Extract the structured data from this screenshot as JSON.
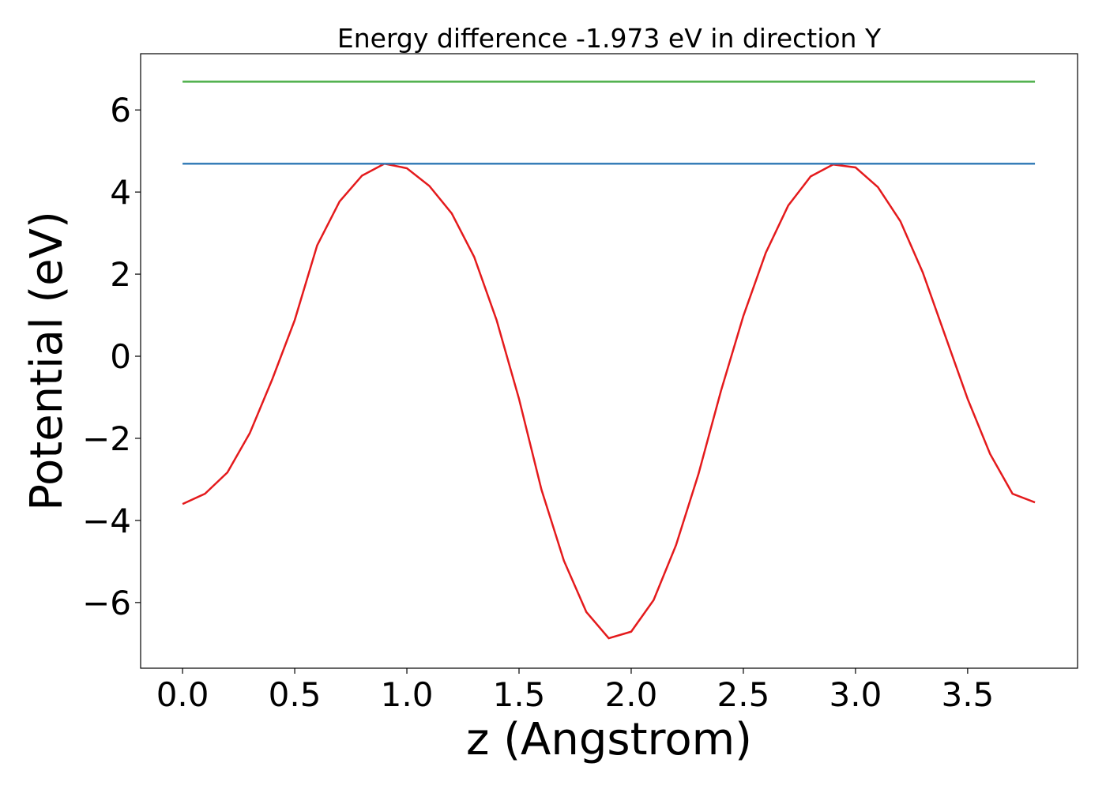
{
  "chart_data": {
    "type": "line",
    "title": "Energy difference -1.973 eV in direction Y",
    "xlabel": "z (Angstrom)",
    "ylabel": "Potential (eV)",
    "xlim": [
      -0.187,
      3.99
    ],
    "ylim": [
      -7.6,
      7.37
    ],
    "xticks": [
      {
        "value": 0,
        "label": "0.0"
      },
      0.5,
      {
        "value": 1,
        "label": "1.0"
      },
      1.5,
      {
        "value": 2,
        "label": "2.0"
      },
      2.5,
      {
        "value": 3,
        "label": "3.0"
      },
      3.5
    ],
    "yticks": [
      {
        "value": -6,
        "label": "−6"
      },
      {
        "value": -4,
        "label": "−4"
      },
      {
        "value": -2,
        "label": "−2"
      },
      0,
      2,
      4,
      6
    ],
    "series": [
      {
        "color": "#e41a1c",
        "x": [
          0,
          0.1,
          0.2,
          0.3,
          0.4,
          0.5,
          0.6,
          0.7,
          0.8,
          0.9,
          1.0,
          1.1,
          1.2,
          1.3,
          1.4,
          1.5,
          1.6,
          1.7,
          1.8,
          1.9,
          2.0,
          2.1,
          2.2,
          2.3,
          2.4,
          2.5,
          2.6,
          2.7,
          2.8,
          2.9,
          3.0,
          3.1,
          3.2,
          3.3,
          3.4,
          3.5,
          3.6,
          3.7,
          3.8
        ],
        "values": [
          -3.6,
          -3.35,
          -2.83,
          -1.87,
          -0.56,
          0.88,
          2.7,
          3.77,
          4.4,
          4.69,
          4.58,
          4.15,
          3.48,
          2.42,
          0.88,
          -1.04,
          -3.25,
          -4.98,
          -6.23,
          -6.87,
          -6.71,
          -5.94,
          -4.6,
          -2.87,
          -0.85,
          0.98,
          2.52,
          3.67,
          4.38,
          4.67,
          4.6,
          4.12,
          3.29,
          2.04,
          0.5,
          -1.04,
          -2.38,
          -3.35,
          -3.56
        ]
      },
      {
        "color": "#377eb8",
        "x": [
          0,
          3.8
        ],
        "values": [
          4.69,
          4.69
        ]
      },
      {
        "color": "#4daf4a",
        "x": [
          0,
          3.8
        ],
        "values": [
          6.69,
          6.69
        ]
      }
    ]
  }
}
